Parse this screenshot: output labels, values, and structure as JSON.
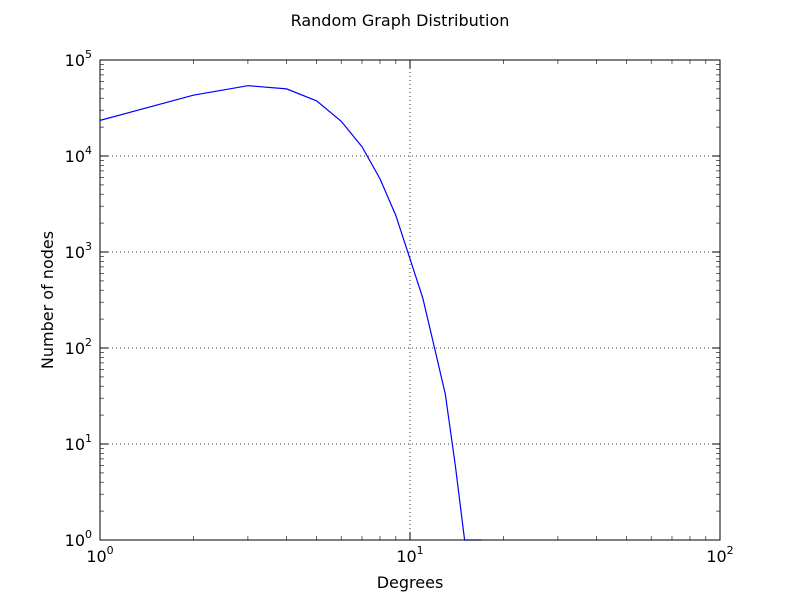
{
  "chart_data": {
    "type": "line",
    "title": "Random Graph Distribution",
    "xlabel": "Degrees",
    "ylabel": "Number of nodes",
    "x_scale": "log",
    "y_scale": "log",
    "xlim": [
      1,
      100
    ],
    "ylim": [
      1,
      100000
    ],
    "x_ticks": [
      {
        "value": 1,
        "base": "10",
        "exp": "0"
      },
      {
        "value": 10,
        "base": "10",
        "exp": "1"
      },
      {
        "value": 100,
        "base": "10",
        "exp": "2"
      }
    ],
    "y_ticks": [
      {
        "value": 1,
        "base": "10",
        "exp": "0"
      },
      {
        "value": 10,
        "base": "10",
        "exp": "1"
      },
      {
        "value": 100,
        "base": "10",
        "exp": "2"
      },
      {
        "value": 1000,
        "base": "10",
        "exp": "3"
      },
      {
        "value": 10000,
        "base": "10",
        "exp": "4"
      },
      {
        "value": 100000,
        "base": "10",
        "exp": "5"
      }
    ],
    "grid": true,
    "series": [
      {
        "color": "#0000ff",
        "x": [
          1,
          2,
          3,
          4,
          5,
          6,
          7,
          8,
          9,
          10,
          11,
          12,
          13,
          14,
          15,
          16,
          17
        ],
        "y": [
          23500,
          43000,
          54000,
          50000,
          37500,
          23000,
          12500,
          5800,
          2400,
          850,
          330,
          100,
          33,
          6,
          1,
          1,
          1
        ]
      }
    ]
  }
}
